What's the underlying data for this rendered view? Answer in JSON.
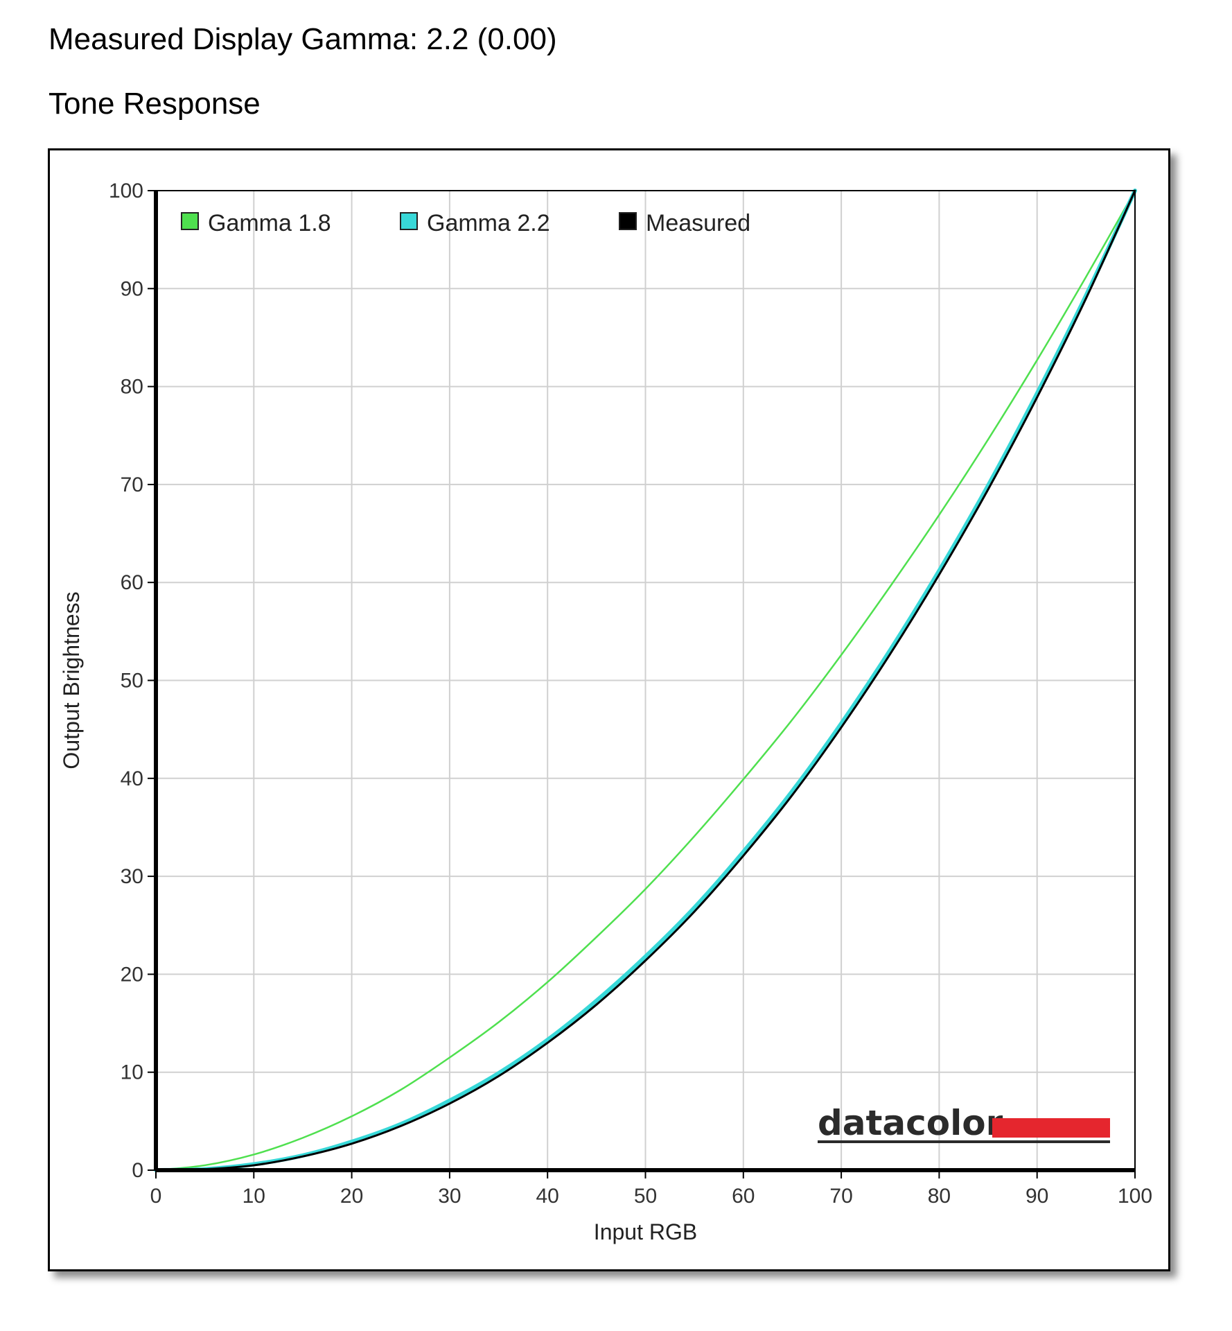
{
  "page": {
    "heading_gamma": "Measured Display Gamma: 2.2 (0.00)",
    "heading_tone": "Tone Response"
  },
  "chart_data": {
    "type": "line",
    "title": "Tone Response",
    "xlabel": "Input RGB",
    "ylabel": "Output Brightness",
    "xlim": [
      0,
      100
    ],
    "ylim": [
      0,
      100
    ],
    "xticks": [
      0,
      10,
      20,
      30,
      40,
      50,
      60,
      70,
      80,
      90,
      100
    ],
    "yticks": [
      0,
      10,
      20,
      30,
      40,
      50,
      60,
      70,
      80,
      90,
      100
    ],
    "grid": true,
    "legend_position": "top-left",
    "series": [
      {
        "name": "Gamma 1.8",
        "color": "#4fe04f",
        "x": [
          0,
          5,
          10,
          15,
          20,
          25,
          30,
          35,
          40,
          45,
          50,
          55,
          60,
          65,
          70,
          75,
          80,
          85,
          90,
          95,
          100
        ],
        "values": [
          0,
          0.5,
          1.6,
          3.3,
          5.5,
          8.2,
          11.5,
          15.1,
          19.2,
          23.8,
          28.7,
          34.1,
          39.9,
          46.0,
          52.6,
          59.6,
          66.9,
          74.6,
          82.7,
          91.2,
          100
        ]
      },
      {
        "name": "Gamma 2.2",
        "color": "#38d8d8",
        "x": [
          0,
          5,
          10,
          15,
          20,
          25,
          30,
          35,
          40,
          45,
          50,
          55,
          60,
          65,
          70,
          75,
          80,
          85,
          90,
          95,
          100
        ],
        "values": [
          0,
          0.1,
          0.6,
          1.5,
          2.9,
          4.7,
          7.1,
          9.9,
          13.3,
          17.3,
          21.8,
          26.8,
          32.5,
          38.7,
          45.6,
          53.1,
          61.2,
          69.9,
          79.3,
          89.3,
          100
        ]
      },
      {
        "name": "Measured",
        "color": "#000000",
        "x": [
          0,
          5,
          10,
          15,
          20,
          25,
          30,
          35,
          40,
          45,
          50,
          55,
          60,
          65,
          70,
          75,
          80,
          85,
          90,
          95,
          100
        ],
        "values": [
          0,
          0.1,
          0.5,
          1.4,
          2.7,
          4.5,
          6.8,
          9.6,
          13.0,
          16.9,
          21.4,
          26.4,
          32.1,
          38.3,
          45.2,
          52.7,
          60.8,
          69.5,
          78.9,
          89.0,
          100
        ]
      }
    ]
  },
  "logo": {
    "text": "datacolor",
    "accent_color": "#e5262e"
  }
}
